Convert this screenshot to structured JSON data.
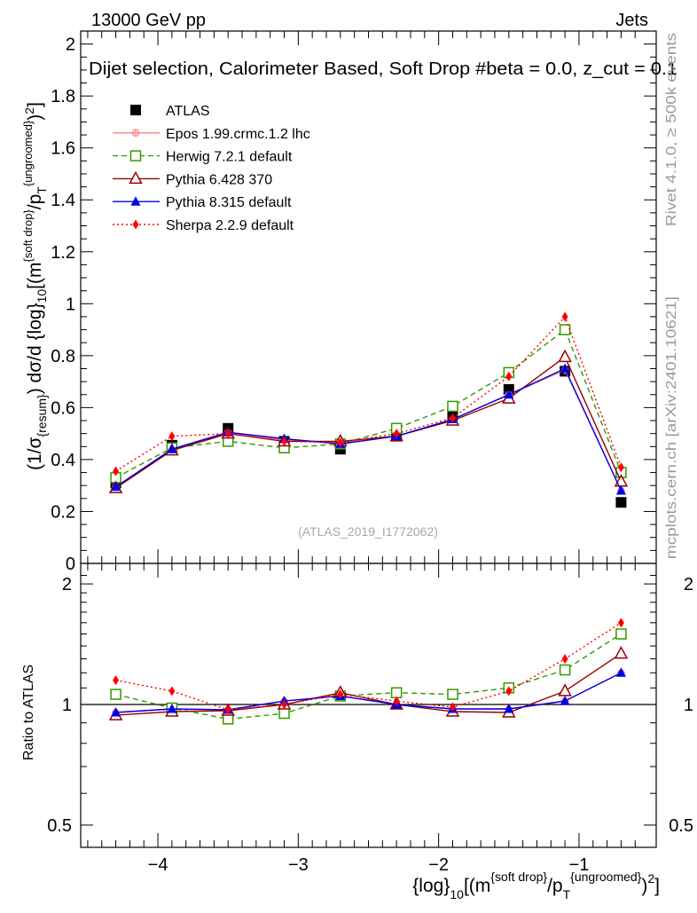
{
  "header": {
    "left": "13000 GeV pp",
    "right": "Jets",
    "title": "Dijet selection, Calorimeter Based, Soft Drop #beta = 0.0, z_cut = 0.1"
  },
  "side_labels": {
    "rivet": "Rivet 4.1.0, ≥ 500k events",
    "mcplots": "mcplots.cern.ch [arXiv:2401.10621]"
  },
  "watermark": "(ATLAS_2019_I1772062)",
  "colors": {
    "ATLAS": "#000000",
    "Epos": "#ff7f7f",
    "Herwig": "#339900",
    "Pythia6": "#990000",
    "Pythia8": "#0000e6",
    "Sherpa": "#ff0000"
  },
  "chart_data": [
    {
      "type": "line",
      "panel": "main",
      "title": "Dijet selection, Calorimeter Based, Soft Drop #beta = 0.0, z_cut = 0.1",
      "xlabel": "{log}_10[(m^{soft drop}/p_T^{ungroomed})^2]",
      "ylabel": "(1/σ_{resum}) dσ/d {log}_10[(m^{soft drop}/p_T^{ungroomed})^2]",
      "xlim": [
        -4.55,
        -0.45
      ],
      "ylim": [
        0,
        2.05
      ],
      "x": [
        -4.3,
        -3.9,
        -3.5,
        -3.1,
        -2.7,
        -2.3,
        -1.9,
        -1.5,
        -1.1,
        -0.7
      ],
      "xticks": [
        "−4",
        "−3",
        "−2",
        "−1"
      ],
      "yticks": [
        "0",
        "0.2",
        "0.4",
        "0.6",
        "0.8",
        "1",
        "1.2",
        "1.4",
        "1.6",
        "1.8",
        "2"
      ],
      "series": [
        {
          "name": "ATLAS",
          "values": [
            0.31,
            0.455,
            0.52,
            0.47,
            0.44,
            0.49,
            0.57,
            0.67,
            0.74,
            0.235
          ]
        },
        {
          "name": "Epos 1.99.crmc.1.2 lhc",
          "values": [
            0.295,
            0.44,
            0.505,
            0.475,
            0.465,
            0.49,
            0.555,
            0.65,
            0.745,
            0.28
          ]
        },
        {
          "name": "Herwig 7.2.1 default",
          "values": [
            0.33,
            0.445,
            0.47,
            0.445,
            0.46,
            0.52,
            0.605,
            0.735,
            0.9,
            0.35
          ]
        },
        {
          "name": "Pythia 6.428 370",
          "values": [
            0.29,
            0.435,
            0.5,
            0.47,
            0.47,
            0.49,
            0.55,
            0.635,
            0.795,
            0.315
          ]
        },
        {
          "name": "Pythia 8.315 default",
          "values": [
            0.295,
            0.44,
            0.505,
            0.48,
            0.46,
            0.49,
            0.555,
            0.65,
            0.75,
            0.28
          ]
        },
        {
          "name": "Sherpa 2.2.9 default",
          "values": [
            0.355,
            0.49,
            0.5,
            0.47,
            0.465,
            0.5,
            0.56,
            0.72,
            0.95,
            0.37
          ]
        }
      ]
    },
    {
      "type": "line",
      "panel": "ratio",
      "ylabel": "Ratio to ATLAS",
      "ylim": [
        0.44,
        2.25
      ],
      "yscale": "log",
      "x": [
        -4.3,
        -3.9,
        -3.5,
        -3.1,
        -2.7,
        -2.3,
        -1.9,
        -1.5,
        -1.1,
        -0.7
      ],
      "yticks": [
        "0.5",
        "1",
        "2"
      ],
      "series": [
        {
          "name": "Epos 1.99.crmc.1.2 lhc",
          "values": [
            0.955,
            0.975,
            0.97,
            1.02,
            1.05,
            1.0,
            0.975,
            0.975,
            1.02,
            1.2
          ]
        },
        {
          "name": "Herwig 7.2.1 default",
          "values": [
            1.06,
            0.98,
            0.92,
            0.95,
            1.05,
            1.07,
            1.06,
            1.1,
            1.22,
            1.5
          ]
        },
        {
          "name": "Pythia 6.428 370",
          "values": [
            0.94,
            0.96,
            0.965,
            1.0,
            1.07,
            1.0,
            0.96,
            0.955,
            1.08,
            1.34
          ]
        },
        {
          "name": "Pythia 8.315 default",
          "values": [
            0.955,
            0.975,
            0.97,
            1.02,
            1.05,
            1.0,
            0.975,
            0.975,
            1.02,
            1.2
          ]
        },
        {
          "name": "Sherpa 2.2.9 default",
          "values": [
            1.15,
            1.08,
            0.97,
            1.0,
            1.06,
            1.02,
            0.985,
            1.08,
            1.3,
            1.6
          ]
        }
      ]
    }
  ]
}
